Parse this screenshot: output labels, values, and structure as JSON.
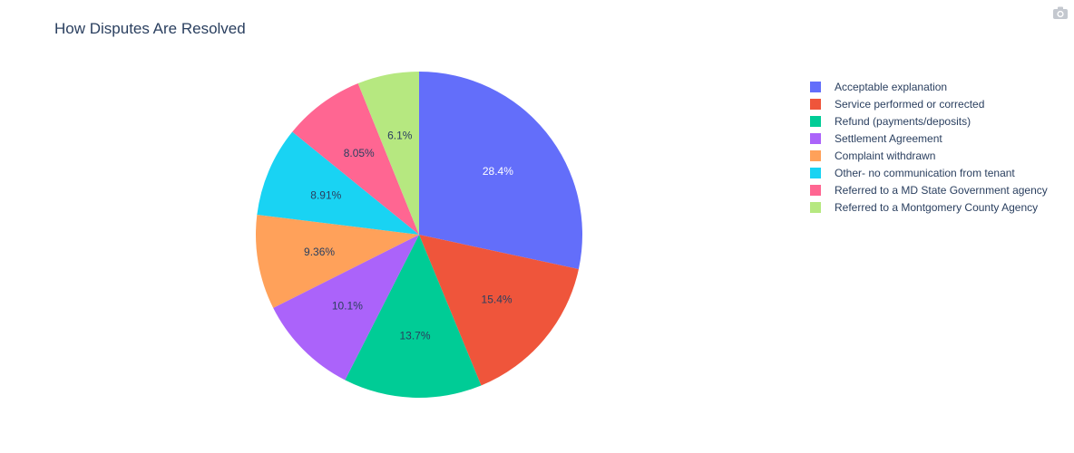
{
  "chart_data": {
    "type": "pie",
    "title": "How Disputes Are Resolved",
    "slices": [
      {
        "label": "Acceptable explanation",
        "value": 28.4,
        "text": "28.4%",
        "color": "#636efa"
      },
      {
        "label": "Service performed or corrected",
        "value": 15.4,
        "text": "15.4%",
        "color": "#ef553b"
      },
      {
        "label": "Refund (payments/deposits)",
        "value": 13.7,
        "text": "13.7%",
        "color": "#00cc96"
      },
      {
        "label": "Settlement Agreement",
        "value": 10.1,
        "text": "10.1%",
        "color": "#ab63fa"
      },
      {
        "label": "Complaint withdrawn",
        "value": 9.36,
        "text": "9.36%",
        "color": "#ffa15a"
      },
      {
        "label": "Other- no communication from tenant",
        "value": 8.91,
        "text": "8.91%",
        "color": "#19d3f3"
      },
      {
        "label": "Referred to a MD State Government agency",
        "value": 8.05,
        "text": "8.05%",
        "color": "#ff6692"
      },
      {
        "label": "Referred to a Montgomery County Agency",
        "value": 6.1,
        "text": "6.1%",
        "color": "#b6e880"
      }
    ],
    "direction": "clockwise",
    "start": "top",
    "legend_position": "right"
  },
  "toolbar": {
    "icon": "camera-icon"
  }
}
